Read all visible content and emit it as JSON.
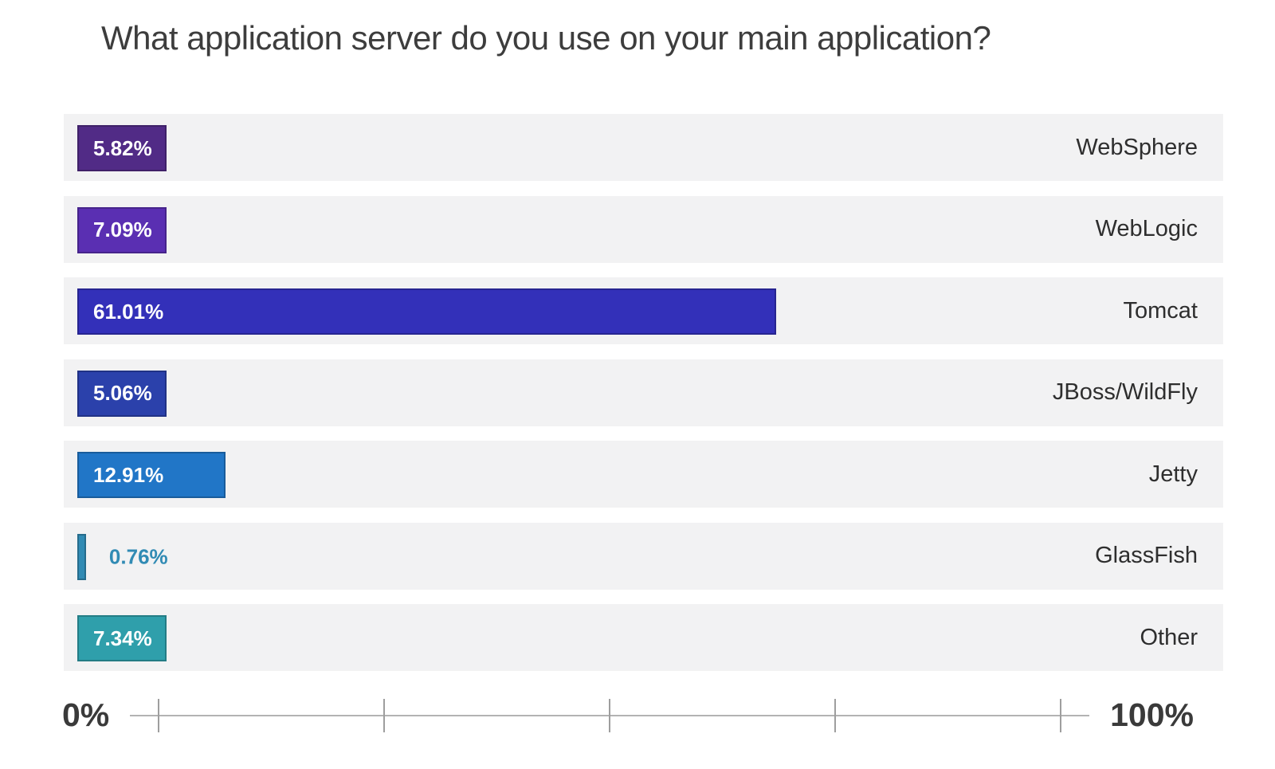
{
  "title": "What application server do you use on your main application?",
  "axis": {
    "left_label": "0%",
    "right_label": "100%"
  },
  "colors": {
    "row_background": "#f2f2f3",
    "axis_line": "#b3b3b3",
    "tick": "#9e9e9e",
    "title_text": "#3d3d3d",
    "category_text": "#2e2e2e",
    "value_text_inside_bar": "#ffffff"
  },
  "chart_data": {
    "type": "bar",
    "orientation": "horizontal",
    "title": "What application server do you use on your main application?",
    "categories": [
      "WebSphere",
      "WebLogic",
      "Tomcat",
      "JBoss/WildFly",
      "Jetty",
      "GlassFish",
      "Other"
    ],
    "values": [
      5.82,
      7.09,
      61.01,
      5.06,
      12.91,
      0.76,
      7.34
    ],
    "value_labels": [
      "5.82%",
      "7.09%",
      "61.01%",
      "5.06%",
      "12.91%",
      "0.76%",
      "7.34%"
    ],
    "bar_colors": [
      "#512b86",
      "#5a2fb2",
      "#3330b9",
      "#2b41ab",
      "#2176c7",
      "#318bb4",
      "#2f9fab"
    ],
    "xlabel": "",
    "ylabel": "",
    "xlim": [
      0,
      100
    ],
    "xtick_labels_visible": [
      "0%",
      "100%"
    ],
    "num_axis_ticks": 5,
    "grid": false,
    "legend": false,
    "value_label_outside_threshold": 2
  }
}
